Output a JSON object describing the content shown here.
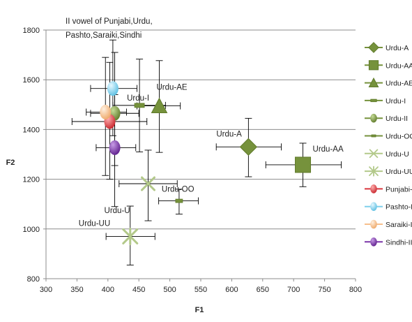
{
  "chart_data": {
    "type": "scatter",
    "title_lines": [
      "II vowel of Punjabi,Urdu,",
      "Pashto,Saraiki,Sindhi"
    ],
    "xlabel": "F1",
    "ylabel": "F2",
    "xlim": [
      300,
      800
    ],
    "ylim": [
      800,
      1800
    ],
    "xticks": [
      300,
      350,
      400,
      450,
      500,
      550,
      600,
      650,
      700,
      750,
      800
    ],
    "yticks": [
      800,
      1000,
      1200,
      1400,
      1600,
      1800
    ],
    "xtick_labels": [
      "300",
      "350",
      "400",
      "450",
      "500",
      "550",
      "600",
      "650",
      "700",
      "750",
      "800"
    ],
    "ytick_labels": [
      "800",
      "1000",
      "1200",
      "1400",
      "1600",
      "1800"
    ],
    "grid": "horizontal",
    "legend_position": "right",
    "series": [
      {
        "name": "Urdu-A",
        "marker": "diamond",
        "color": "#76923c",
        "x": 627,
        "y": 1330,
        "xerr": [
          575,
          680
        ],
        "yerr": [
          1210,
          1445
        ],
        "label": "Urdu-A"
      },
      {
        "name": "Urdu-AA",
        "marker": "square",
        "color": "#76923c",
        "x": 715,
        "y": 1258,
        "xerr": [
          655,
          777
        ],
        "yerr": [
          1170,
          1345
        ],
        "label": "Urdu-AA"
      },
      {
        "name": "Urdu-AE",
        "marker": "triangle",
        "color": "#76923c",
        "x": 483,
        "y": 1495,
        "xerr": [
          447,
          517
        ],
        "yerr": [
          1308,
          1677
        ],
        "label": "Urdu-AE"
      },
      {
        "name": "Urdu-I",
        "marker": "dash",
        "color": "#76923c",
        "x": 451,
        "y": 1497,
        "xerr": [
          408,
          493
        ],
        "yerr": [
          1310,
          1683
        ],
        "label": "Urdu-I"
      },
      {
        "name": "Urdu-II",
        "marker": "circle",
        "color": "#76923c",
        "x": 411,
        "y": 1465,
        "xerr": [
          372,
          450
        ],
        "yerr": [
          1255,
          1710
        ],
        "label": ""
      },
      {
        "name": "Urdu-OO",
        "marker": "smalldash",
        "color": "#76923c",
        "x": 515,
        "y": 1113,
        "xerr": [
          482,
          546
        ],
        "yerr": [
          1060,
          1160
        ],
        "label": "Urdu-OO"
      },
      {
        "name": "Urdu-U",
        "marker": "x",
        "color": "#b3c98a",
        "x": 465,
        "y": 1182,
        "xerr": [
          418,
          512
        ],
        "yerr": [
          1033,
          1317
        ],
        "label": "Urdu-U"
      },
      {
        "name": "Urdu-UU",
        "marker": "star",
        "color": "#b3c98a",
        "x": 436,
        "y": 970,
        "xerr": [
          397,
          476
        ],
        "yerr": [
          855,
          1092
        ],
        "label": "Urdu-UU"
      },
      {
        "name": "Punjabi-II",
        "marker": "circle",
        "color": "#d9363e",
        "x": 403,
        "y": 1432,
        "xerr": [
          342,
          463
        ],
        "yerr": [
          1200,
          1670
        ],
        "label": ""
      },
      {
        "name": "Pashto-II",
        "marker": "circle",
        "color": "#7fd0ec",
        "x": 408,
        "y": 1565,
        "xerr": [
          372,
          447
        ],
        "yerr": [
          1375,
          1760
        ],
        "label": ""
      },
      {
        "name": "Saraiki-II",
        "marker": "circle",
        "color": "#f7bf8c",
        "x": 396,
        "y": 1470,
        "xerr": [
          365,
          430
        ],
        "yerr": [
          1215,
          1690
        ],
        "label": ""
      },
      {
        "name": "Sindhi-II",
        "marker": "circle",
        "color": "#7b35a8",
        "x": 411,
        "y": 1327,
        "xerr": [
          381,
          445
        ],
        "yerr": [
          1090,
          1540
        ],
        "label": ""
      }
    ]
  }
}
